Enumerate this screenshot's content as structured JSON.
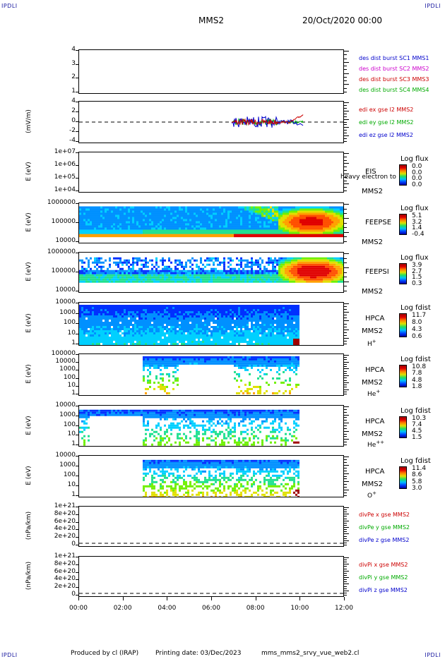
{
  "corners": {
    "tl": "IPDLI",
    "tr": "IPDLI",
    "bl": "IPDLI",
    "br": "IPDLI"
  },
  "header": {
    "sc": "MMS2",
    "date": "20/Oct/2020 00:00"
  },
  "footer": {
    "produced": "Produced by cl (IRAP)",
    "printing": "Printing date: 03/Dec/2023",
    "file": "mms_mms2_srvy_vue_web2.cl"
  },
  "chart_data": [
    {
      "type": "line",
      "panel": "p1",
      "yticks": [
        "4",
        "3",
        "2",
        "1"
      ],
      "ylim": [
        1,
        4
      ],
      "legend": [
        {
          "name": "des dist burst SC1 MMS1",
          "color": "#0000cc"
        },
        {
          "name": "des dist burst SC2 MMS2",
          "color": "#cc00cc"
        },
        {
          "name": "des dist burst SC3 MMS3",
          "color": "#cc0000"
        },
        {
          "name": "des dist burst SC4 MMS4",
          "color": "#00aa00"
        }
      ]
    },
    {
      "type": "line",
      "panel": "p2",
      "ylabel": "(mV/m)",
      "yticks": [
        "4",
        "2",
        "0",
        "-2",
        "-4"
      ],
      "ylim": [
        -4,
        4
      ],
      "legend": [
        {
          "name": "edi ex gse l2 MMS2",
          "color": "#cc0000"
        },
        {
          "name": "edi ey gse l2 MMS2",
          "color": "#00aa00"
        },
        {
          "name": "edi ez gse l2 MMS2",
          "color": "#0000cc"
        }
      ]
    },
    {
      "type": "heatmap",
      "panel": "p3",
      "ylabel": "E (eV)",
      "yticks": [
        "1e+07",
        "1e+06",
        "1e+05",
        "1e+04"
      ],
      "label1": "EIS",
      "label1b": "heavy electron to",
      "label2": "MMS2",
      "cbtitle": "Log flux",
      "cbvals": [
        "0.0",
        "0.0",
        "0.0",
        "0.0"
      ]
    },
    {
      "type": "heatmap",
      "panel": "p4",
      "ylabel": "E (eV)",
      "yticks": [
        "1000000",
        "100000",
        "10000"
      ],
      "label1": "FEEPSE",
      "label2": "MMS2",
      "cbtitle": "Log flux",
      "cbvals": [
        "5.1",
        "3.2",
        "1.4",
        "-0.4"
      ]
    },
    {
      "type": "heatmap",
      "panel": "p5",
      "ylabel": "E (eV)",
      "yticks": [
        "1000000",
        "100000",
        "10000"
      ],
      "label1": "FEEPSI",
      "label2": "MMS2",
      "cbtitle": "Log flux",
      "cbvals": [
        "3.9",
        "2.7",
        "1.5",
        "0.3"
      ]
    },
    {
      "type": "heatmap",
      "panel": "p6",
      "ylabel": "E (eV)",
      "yticks": [
        "10000",
        "1000",
        "100",
        "10",
        "1"
      ],
      "label1": "HPCA",
      "label2": "MMS2",
      "species": "H",
      "sup": "+",
      "cbtitle": "Log fdist",
      "cbvals": [
        "11.7",
        "8.0",
        "4.3",
        "0.6"
      ]
    },
    {
      "type": "heatmap",
      "panel": "p7",
      "ylabel": "E (eV)",
      "yticks": [
        "100000",
        "10000",
        "1000",
        "100",
        "10",
        "1"
      ],
      "label1": "HPCA",
      "label2": "MMS2",
      "species": "He",
      "sup": "+",
      "cbtitle": "Log fdist",
      "cbvals": [
        "10.8",
        "7.8",
        "4.8",
        "1.8"
      ]
    },
    {
      "type": "heatmap",
      "panel": "p8",
      "ylabel": "E (eV)",
      "yticks": [
        "10000",
        "1000",
        "100",
        "10",
        "1"
      ],
      "label1": "HPCA",
      "label2": "MMS2",
      "species": "He",
      "sup": "++",
      "cbtitle": "Log fdist",
      "cbvals": [
        "10.3",
        "7.4",
        "4.5",
        "1.5"
      ]
    },
    {
      "type": "heatmap",
      "panel": "p9",
      "ylabel": "E (eV)",
      "yticks": [
        "10000",
        "1000",
        "100",
        "10",
        "1"
      ],
      "label1": "HPCA",
      "label2": "MMS2",
      "species": "O",
      "sup": "+",
      "cbtitle": "Log fdist",
      "cbvals": [
        "11.4",
        "8.6",
        "5.8",
        "3.0"
      ]
    },
    {
      "type": "line",
      "panel": "p10",
      "ylabel": "(nPa/km)",
      "yticks": [
        "1e+21",
        "8e+20",
        "6e+20",
        "4e+20",
        "2e+20",
        "0"
      ],
      "ylim": [
        0,
        1e+21
      ],
      "legend": [
        {
          "name": "divPe x gse MMS2",
          "color": "#cc0000"
        },
        {
          "name": "divPe y gse MMS2",
          "color": "#00aa00"
        },
        {
          "name": "divPe z gse MMS2",
          "color": "#0000cc"
        }
      ]
    },
    {
      "type": "line",
      "panel": "p11",
      "ylabel": "(nPa/km)",
      "yticks": [
        "1e+21",
        "8e+20",
        "6e+20",
        "4e+20",
        "2e+20",
        "0"
      ],
      "ylim": [
        0,
        1e+21
      ],
      "legend": [
        {
          "name": "divPi x gse MMS2",
          "color": "#cc0000"
        },
        {
          "name": "divPi y gse MMS2",
          "color": "#00aa00"
        },
        {
          "name": "divPi z gse MMS2",
          "color": "#0000cc"
        }
      ]
    }
  ],
  "xaxis": {
    "ticks": [
      "00:00",
      "02:00",
      "04:00",
      "06:00",
      "08:00",
      "10:00",
      "12:00"
    ],
    "range": [
      0,
      12
    ]
  }
}
